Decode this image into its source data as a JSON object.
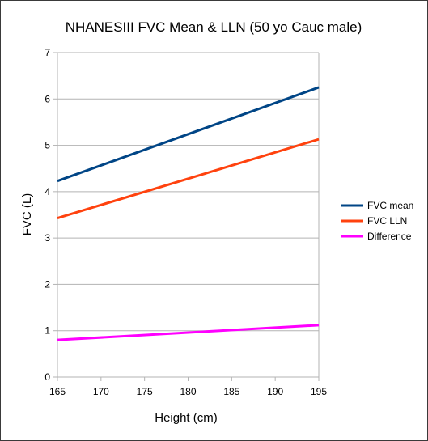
{
  "chart_data": {
    "type": "line",
    "title": "NHANESIII FVC Mean & LLN (50 yo Cauc male)",
    "xlabel": "Height (cm)",
    "ylabel": "FVC (L)",
    "xlim": [
      165,
      195
    ],
    "ylim": [
      0,
      7
    ],
    "x_ticks": [
      "165",
      "170",
      "175",
      "180",
      "185",
      "190",
      "195"
    ],
    "y_ticks": [
      "0",
      "1",
      "2",
      "3",
      "4",
      "5",
      "6",
      "7"
    ],
    "grid": true,
    "legend_position": "right",
    "x": [
      165,
      195
    ],
    "series": [
      {
        "name": "FVC mean",
        "color": "#004586",
        "values": [
          4.23,
          6.25
        ]
      },
      {
        "name": "FVC LLN",
        "color": "#ff420e",
        "values": [
          3.43,
          5.13
        ]
      },
      {
        "name": "Difference",
        "color": "#ff00ff",
        "values": [
          0.8,
          1.12
        ]
      }
    ]
  }
}
